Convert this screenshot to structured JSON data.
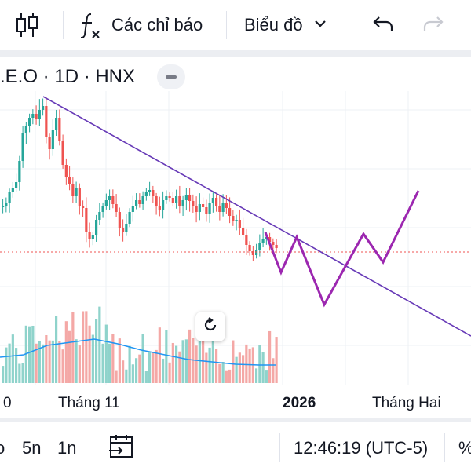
{
  "toolbar": {
    "indicators_label": "Các chỉ báo",
    "chart_type_label": "Biểu đồ",
    "icons": [
      "candles-icon",
      "function-icon",
      "chevron-down-icon",
      "undo-icon",
      "redo-icon"
    ]
  },
  "symbol": {
    "text": ".E.O · 1D · HNX"
  },
  "x_axis": {
    "labels": [
      "0",
      "Tháng 11",
      "2026",
      "Tháng Hai"
    ]
  },
  "bottom_bar": {
    "range_partial": "o",
    "range_5n": "5n",
    "range_1n": "1n",
    "time": "12:46:19 (UTC-5)",
    "percent": "%"
  },
  "colors": {
    "up": "#26a69a",
    "down": "#ef5350",
    "up_volume": "#8fd3cb",
    "down_volume": "#f4a8a6",
    "trendline": "#673ab7",
    "projection": "#9c27b0",
    "volume_ma": "#2196f3",
    "price_line": "#ef5350",
    "grid": "#eef0f4"
  }
}
